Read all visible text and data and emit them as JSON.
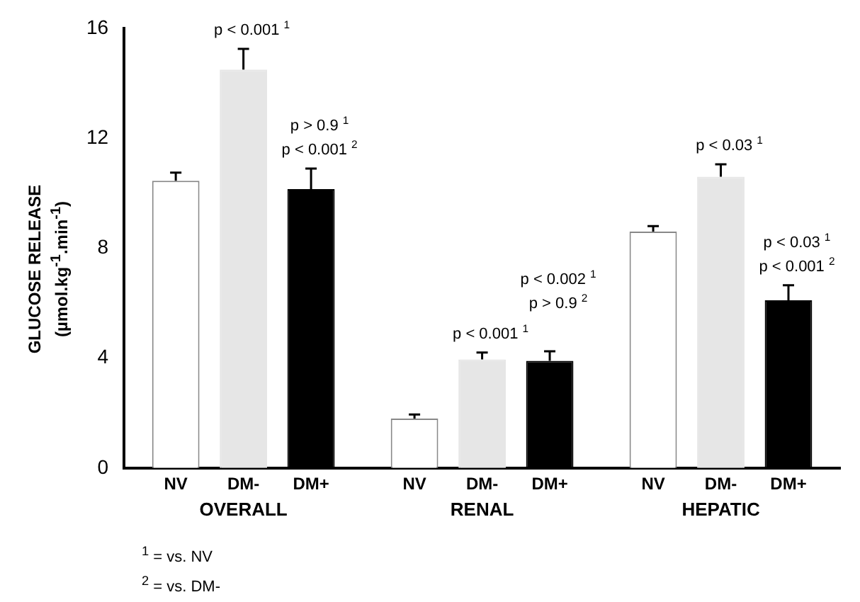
{
  "chart_data": {
    "type": "bar",
    "ylabel": "GLUCOSE RELEASE\n(µmol.kg$^{-1}$.min$^{-1}$)",
    "categories": [
      "OVERALL",
      "RENAL",
      "HEPATIC"
    ],
    "series": [
      {
        "name": "NV",
        "color": "#ffffff",
        "values": [
          10.45,
          1.8,
          8.6
        ],
        "errors": [
          0.3,
          0.15,
          0.2
        ]
      },
      {
        "name": "DM-",
        "color": "#e6e6e6",
        "values": [
          14.5,
          3.95,
          10.6
        ],
        "errors": [
          0.75,
          0.25,
          0.45
        ]
      },
      {
        "name": "DM+",
        "color": "#000000",
        "values": [
          10.15,
          3.9,
          6.1
        ],
        "errors": [
          0.75,
          0.35,
          0.55
        ]
      }
    ],
    "ylim": [
      0,
      16
    ],
    "yticks": [
      0,
      4,
      8,
      12,
      16
    ],
    "grid": false,
    "legend": false,
    "annotations": [
      "p < 0.001 $^{1}$",
      "p > 0.9 $^{1}$",
      "p < 0.001 $^{2}$",
      "p < 0.001 $^{1}$",
      "p < 0.002 $^{1}$",
      "p > 0.9 $^{2}$",
      "p < 0.03 $^{1}$",
      "p < 0.03 $^{1}$",
      "p < 0.001 $^{2}$",
      "$^{1}$ = vs. NV",
      "$^{2}$ = vs. DM-"
    ]
  }
}
